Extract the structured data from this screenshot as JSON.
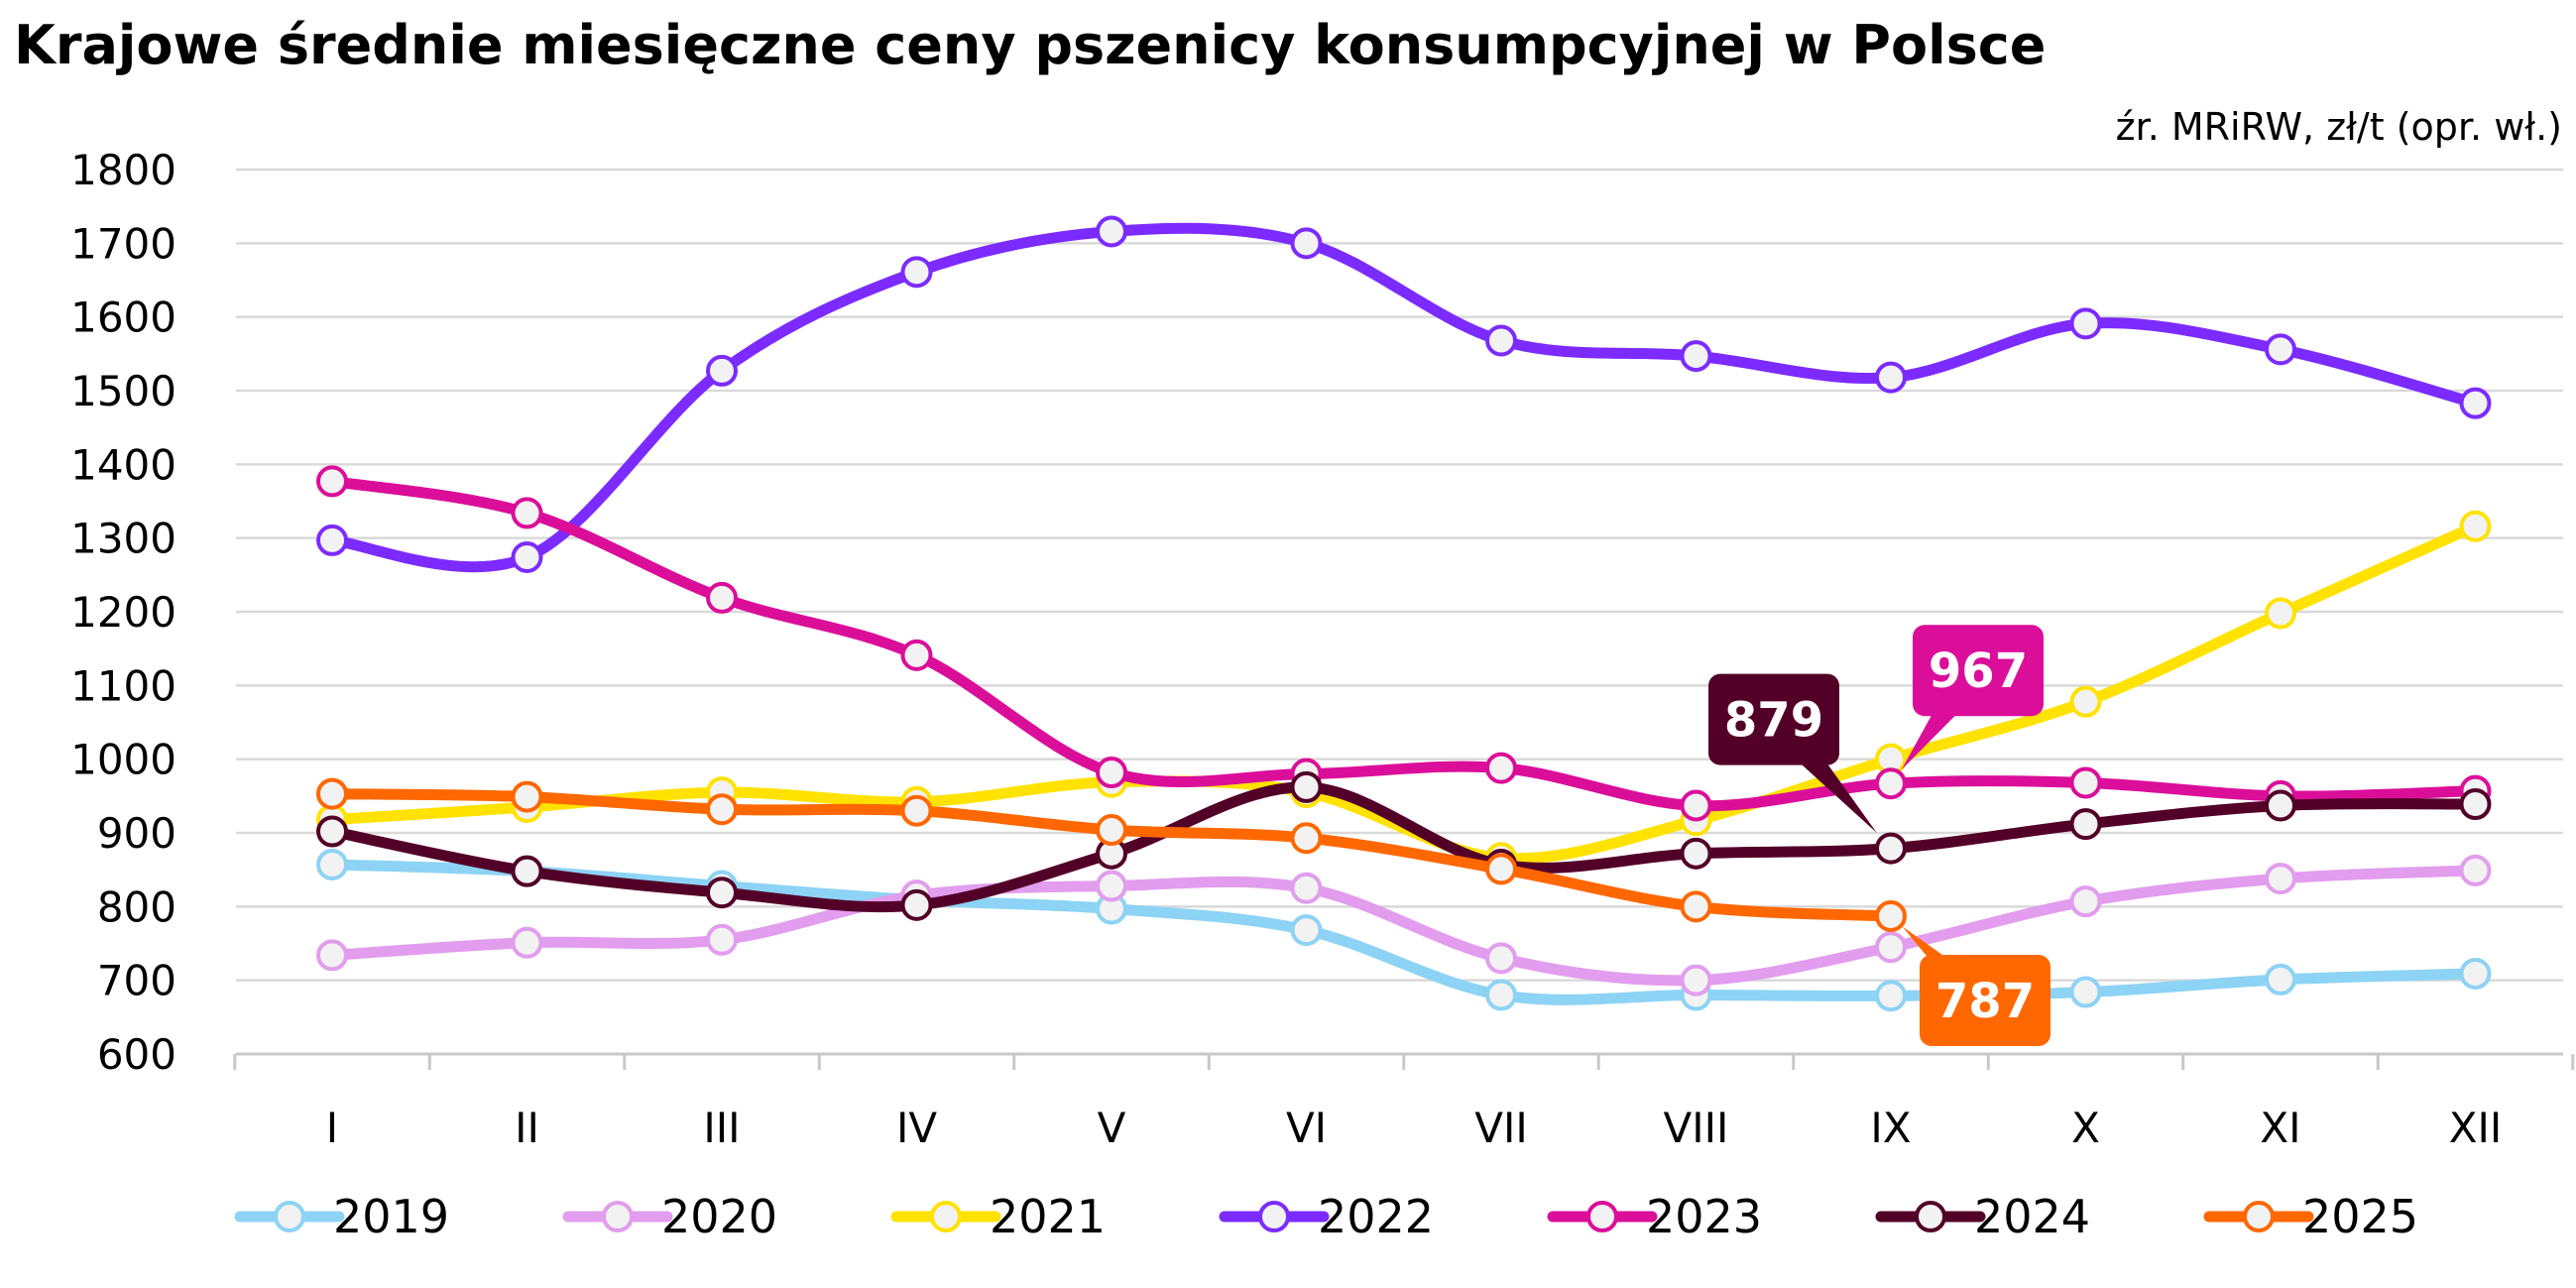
{
  "chart_data": {
    "type": "line",
    "title": "Krajowe średnie miesięczne ceny pszenicy konsumpcyjnej w Polsce",
    "source_note": "źr. MRiRW, zł/t (opr. wł.)",
    "categories": [
      "I",
      "II",
      "III",
      "IV",
      "V",
      "VI",
      "VII",
      "VIII",
      "IX",
      "X",
      "XI",
      "XII"
    ],
    "ylim": [
      600,
      1800
    ],
    "yticks": [
      600,
      700,
      800,
      900,
      1000,
      1100,
      1200,
      1300,
      1400,
      1500,
      1600,
      1700,
      1800
    ],
    "grid": true,
    "legend_position": "bottom",
    "series": [
      {
        "name": "2019",
        "color": "#8DD3F5",
        "values": [
          857,
          848,
          828,
          809,
          797,
          768,
          680,
          680,
          679,
          684,
          701,
          709
        ]
      },
      {
        "name": "2020",
        "color": "#E29DEE",
        "values": [
          734,
          751,
          755,
          815,
          828,
          825,
          730,
          700,
          745,
          807,
          838,
          849
        ]
      },
      {
        "name": "2021",
        "color": "#FFE200",
        "values": [
          918,
          935,
          955,
          942,
          969,
          955,
          866,
          917,
          1000,
          1078,
          1198,
          1316
        ]
      },
      {
        "name": "2022",
        "color": "#7C2BFF",
        "values": [
          1297,
          1274,
          1527,
          1661,
          1716,
          1700,
          1568,
          1547,
          1518,
          1591,
          1556,
          1483
        ]
      },
      {
        "name": "2023",
        "color": "#DB0E9A",
        "values": [
          1377,
          1334,
          1219,
          1141,
          982,
          980,
          988,
          937,
          967,
          968,
          950,
          957
        ]
      },
      {
        "name": "2024",
        "color": "#530028",
        "values": [
          902,
          848,
          819,
          802,
          872,
          962,
          857,
          872,
          879,
          912,
          937,
          939
        ]
      },
      {
        "name": "2025",
        "color": "#FF6700",
        "values": [
          953,
          949,
          932,
          930,
          904,
          893,
          851,
          800,
          787,
          null,
          null,
          null
        ]
      }
    ],
    "annotations": [
      {
        "text": "879",
        "series": "2024",
        "month": "IX",
        "color": "#530028"
      },
      {
        "text": "967",
        "series": "2023",
        "month": "IX",
        "color": "#DB0E9A"
      },
      {
        "text": "787",
        "series": "2025",
        "month": "IX",
        "color": "#FF6700"
      }
    ]
  }
}
